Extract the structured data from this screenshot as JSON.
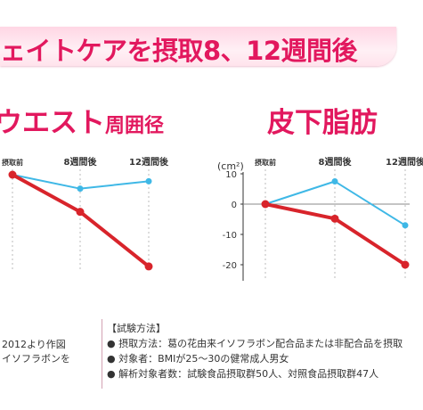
{
  "header": {
    "title": "ェイトケアを摂取8、12週間後"
  },
  "left_chart_title": {
    "main": "ウエスト",
    "suffix": "周囲径"
  },
  "right_chart_title": "皮下脂肪",
  "colors": {
    "accent": "#e2185e",
    "test_line": "#d8242b",
    "control_line": "#3fb8e6",
    "banner": "#ffd6e4"
  },
  "chart_data": [
    {
      "type": "line",
      "title": "ウエスト周囲径",
      "categories": [
        "摂取前",
        "8週間後",
        "12週間後"
      ],
      "series": [
        {
          "values": [
            0,
            -8.5,
            -21
          ]
        },
        {
          "values": [
            0,
            -3.2,
            -1.5
          ]
        }
      ],
      "ylim": [
        -25,
        2
      ]
    },
    {
      "type": "line",
      "title": "皮下脂肪",
      "unit_label": "(cm²)",
      "categories": [
        "摂取前",
        "8週間後",
        "12週間後"
      ],
      "yticks": [
        10,
        0,
        -10,
        -20
      ],
      "series": [
        {
          "values": [
            0,
            -4.8,
            -20
          ]
        },
        {
          "values": [
            0,
            7.5,
            -7
          ]
        }
      ],
      "ylim": [
        -25,
        10
      ]
    }
  ],
  "source": {
    "line1": "2012より作図",
    "line2": "イソフラボンを"
  },
  "method": {
    "heading": "【試験方法】",
    "items": [
      "● 摂取方法：葛の花由来イソフラボン配合品または非配合品を摂取",
      "● 対象者：BMIが25～30の健常成人男女",
      "● 解析対象者数：試験食品摂取群50人、対照食品摂取群47人"
    ]
  }
}
